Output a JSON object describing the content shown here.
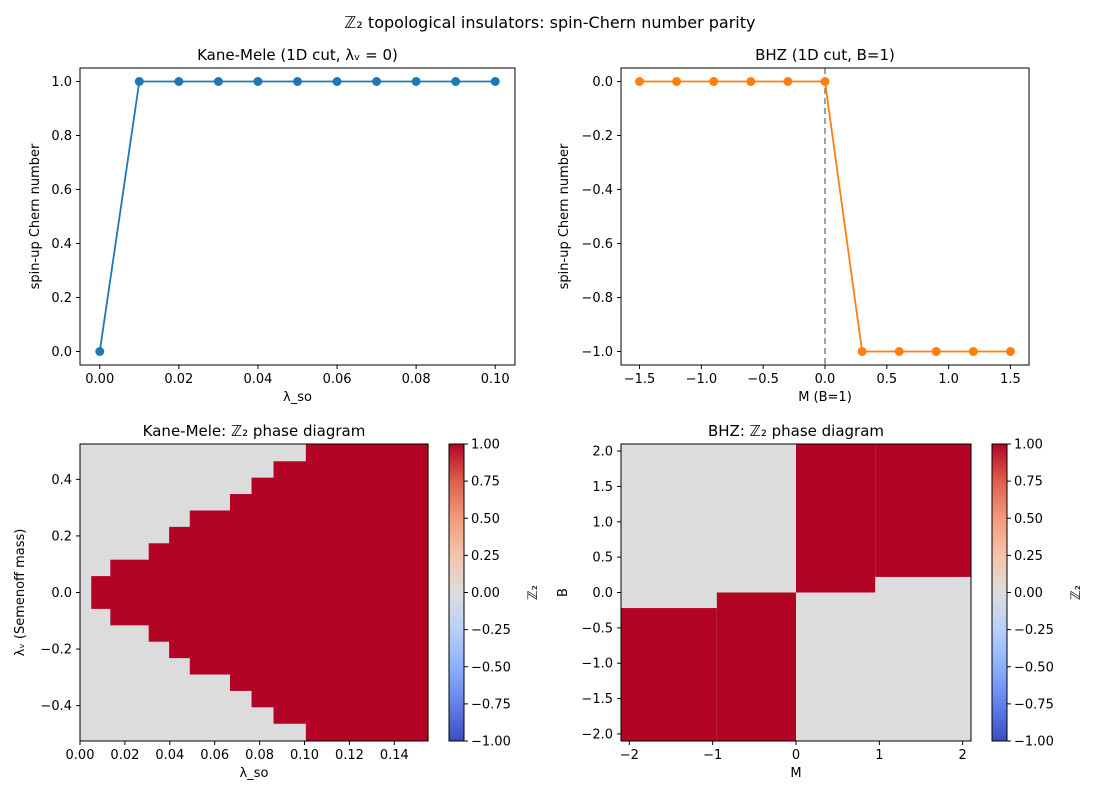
{
  "suptitle": "ℤ₂ topological insulators: spin-Chern number parity",
  "chart_data": [
    {
      "type": "line",
      "title": "Kane-Mele (1D cut, λᵥ = 0)",
      "xlabel": "λ_so",
      "ylabel": "spin-up Chern number",
      "xlim": [
        -0.005,
        0.105
      ],
      "ylim": [
        -0.05,
        1.05
      ],
      "xticks": [
        "0.00",
        "0.02",
        "0.04",
        "0.06",
        "0.08",
        "0.10"
      ],
      "xtick_values": [
        0,
        0.02,
        0.04,
        0.06,
        0.08,
        0.1
      ],
      "yticks": [
        "0.0",
        "0.2",
        "0.4",
        "0.6",
        "0.8",
        "1.0"
      ],
      "ytick_values": [
        0,
        0.2,
        0.4,
        0.6,
        0.8,
        1.0
      ],
      "color": "#1f77b4",
      "x": [
        0,
        0.01,
        0.02,
        0.03,
        0.04,
        0.05,
        0.06,
        0.07,
        0.08,
        0.09,
        0.1
      ],
      "y": [
        0,
        1,
        1,
        1,
        1,
        1,
        1,
        1,
        1,
        1,
        1
      ]
    },
    {
      "type": "line",
      "title": "BHZ (1D cut, B=1)",
      "xlabel": "M (B=1)",
      "ylabel": "spin-up Chern number",
      "xlim": [
        -1.65,
        1.65
      ],
      "ylim": [
        -1.05,
        0.05
      ],
      "xticks": [
        "−1.5",
        "−1.0",
        "−0.5",
        "0.0",
        "0.5",
        "1.0",
        "1.5"
      ],
      "xtick_values": [
        -1.5,
        -1.0,
        -0.5,
        0,
        0.5,
        1.0,
        1.5
      ],
      "yticks": [
        "0.0",
        "−0.2",
        "−0.4",
        "−0.6",
        "−0.8",
        "−1.0"
      ],
      "ytick_values": [
        0,
        -0.2,
        -0.4,
        -0.6,
        -0.8,
        -1.0
      ],
      "color": "#ff7f0e",
      "vline": 0,
      "x": [
        -1.5,
        -1.2,
        -0.9,
        -0.6,
        -0.3,
        0,
        0.3,
        0.6,
        0.9,
        1.2,
        1.5
      ],
      "y": [
        0,
        0,
        0,
        0,
        0,
        0,
        -1,
        -1,
        -1,
        -1,
        -1
      ]
    },
    {
      "type": "heatmap",
      "title": "Kane-Mele: ℤ₂ phase diagram",
      "xlabel": "λ_so",
      "ylabel": "λᵥ (Semenoff mass)",
      "colorbar_label": "ℤ₂",
      "xlim": [
        0,
        0.155
      ],
      "ylim": [
        -0.525,
        0.525
      ],
      "xticks": [
        "0.00",
        "0.02",
        "0.04",
        "0.06",
        "0.08",
        "0.10",
        "0.12",
        "0.14"
      ],
      "xtick_values": [
        0,
        0.02,
        0.04,
        0.06,
        0.08,
        0.1,
        0.12,
        0.14
      ],
      "yticks": [
        "−0.4",
        "−0.2",
        "0.0",
        "0.2",
        "0.4"
      ],
      "ytick_values": [
        -0.4,
        -0.2,
        0,
        0.2,
        0.4
      ],
      "x_edges": [
        0,
        0.005,
        0.0135,
        0.0306,
        0.0397,
        0.0489,
        0.0668,
        0.0764,
        0.0862,
        0.1006,
        0.155
      ],
      "nontrivial_half_width": [
        0,
        0.058,
        0.116,
        0.174,
        0.232,
        0.29,
        0.348,
        0.406,
        0.464,
        0.525
      ],
      "values_outside": 0,
      "values_inside": 1
    },
    {
      "type": "heatmap",
      "title": "BHZ: ℤ₂ phase diagram",
      "xlabel": "M",
      "ylabel": "B",
      "colorbar_label": "ℤ₂",
      "xlim": [
        -2.1,
        2.1
      ],
      "ylim": [
        -2.1,
        2.1
      ],
      "xticks": [
        "−2",
        "−1",
        "0",
        "1",
        "2"
      ],
      "xtick_values": [
        -2,
        -1,
        0,
        1,
        2
      ],
      "yticks": [
        "−2.0",
        "−1.5",
        "−1.0",
        "−0.5",
        "0.0",
        "0.5",
        "1.0",
        "1.5",
        "2.0"
      ],
      "ytick_values": [
        -2,
        -1.5,
        -1,
        -0.5,
        0,
        0.5,
        1,
        1.5,
        2
      ],
      "cells": [
        {
          "x0": -2.1,
          "x1": -0.95,
          "y0": -2.1,
          "y1": -0.22,
          "value": 1
        },
        {
          "x0": -0.95,
          "x1": 0,
          "y0": -2.1,
          "y1": 0,
          "value": 1
        },
        {
          "x0": 0,
          "x1": 0.95,
          "y0": 0,
          "y1": 2.1,
          "value": 1
        },
        {
          "x0": 0.95,
          "x1": 2.1,
          "y0": 0.22,
          "y1": 2.1,
          "value": 1
        }
      ],
      "background_value": 0
    }
  ],
  "colorbar": {
    "ticks": [
      "1.00",
      "0.75",
      "0.50",
      "0.25",
      "0.00",
      "−0.25",
      "−0.50",
      "−0.75",
      "−1.00"
    ],
    "range": [
      -1,
      1
    ]
  },
  "colors": {
    "zero": "#dcdcdc",
    "one": "#b40426",
    "neg_one": "#3b4cc0",
    "vline": "#808080"
  }
}
